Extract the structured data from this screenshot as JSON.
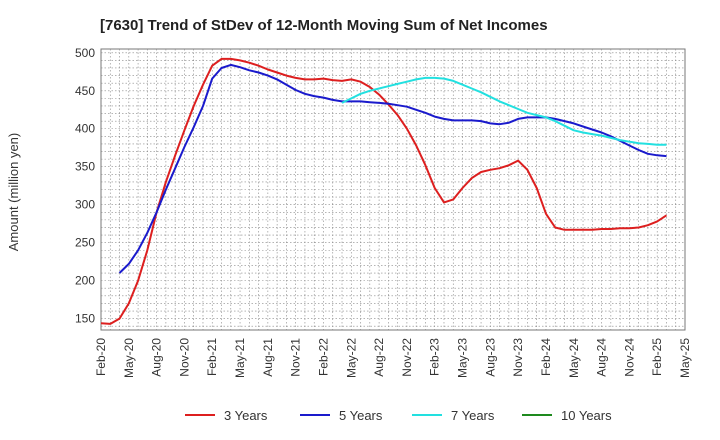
{
  "chart_data": {
    "type": "line",
    "title": "[7630]  Trend of StDev of 12-Month Moving Sum of Net Incomes",
    "xlabel": "",
    "ylabel": "Amount (million yen)",
    "ylim": [
      135,
      505
    ],
    "y_ticks": [
      150,
      200,
      250,
      300,
      350,
      400,
      450,
      500
    ],
    "x_ticks": [
      "Feb-20",
      "May-20",
      "Aug-20",
      "Nov-20",
      "Feb-21",
      "May-21",
      "Aug-21",
      "Nov-21",
      "Feb-22",
      "May-22",
      "Aug-22",
      "Nov-22",
      "Feb-23",
      "May-23",
      "Aug-23",
      "Nov-23",
      "Feb-24",
      "May-24",
      "Aug-24",
      "Nov-24",
      "Feb-25",
      "May-25"
    ],
    "x_unit": "month index from Feb-20",
    "grid": true,
    "legend_position": "bottom",
    "series": [
      {
        "name": "3 Years",
        "color": "#dd1f1f",
        "points": [
          [
            0,
            144
          ],
          [
            1,
            143
          ],
          [
            2,
            150
          ],
          [
            3,
            170
          ],
          [
            4,
            200
          ],
          [
            5,
            240
          ],
          [
            6,
            290
          ],
          [
            7,
            330
          ],
          [
            8,
            365
          ],
          [
            9,
            398
          ],
          [
            10,
            430
          ],
          [
            11,
            458
          ],
          [
            12,
            483
          ],
          [
            13,
            492
          ],
          [
            14,
            492
          ],
          [
            15,
            490
          ],
          [
            16,
            487
          ],
          [
            17,
            483
          ],
          [
            18,
            478
          ],
          [
            19,
            474
          ],
          [
            20,
            470
          ],
          [
            21,
            467
          ],
          [
            22,
            465
          ],
          [
            23,
            465
          ],
          [
            24,
            466
          ],
          [
            25,
            464
          ],
          [
            26,
            463
          ],
          [
            27,
            465
          ],
          [
            28,
            462
          ],
          [
            29,
            455
          ],
          [
            30,
            445
          ],
          [
            31,
            432
          ],
          [
            32,
            418
          ],
          [
            33,
            400
          ],
          [
            34,
            378
          ],
          [
            35,
            352
          ],
          [
            36,
            322
          ],
          [
            37,
            303
          ],
          [
            38,
            307
          ],
          [
            39,
            322
          ],
          [
            40,
            335
          ],
          [
            41,
            343
          ],
          [
            42,
            346
          ],
          [
            43,
            348
          ],
          [
            44,
            352
          ],
          [
            45,
            358
          ],
          [
            46,
            346
          ],
          [
            47,
            322
          ],
          [
            48,
            288
          ],
          [
            49,
            270
          ],
          [
            50,
            267
          ],
          [
            51,
            267
          ],
          [
            52,
            267
          ],
          [
            53,
            267
          ],
          [
            54,
            268
          ],
          [
            55,
            268
          ],
          [
            56,
            269
          ],
          [
            57,
            269
          ],
          [
            58,
            270
          ],
          [
            59,
            273
          ],
          [
            60,
            278
          ],
          [
            61,
            286
          ]
        ]
      },
      {
        "name": "5 Years",
        "color": "#1a1acc",
        "points": [
          [
            2,
            210
          ],
          [
            3,
            222
          ],
          [
            4,
            240
          ],
          [
            5,
            263
          ],
          [
            6,
            290
          ],
          [
            7,
            320
          ],
          [
            8,
            348
          ],
          [
            9,
            376
          ],
          [
            10,
            402
          ],
          [
            11,
            430
          ],
          [
            12,
            466
          ],
          [
            13,
            480
          ],
          [
            14,
            484
          ],
          [
            15,
            481
          ],
          [
            16,
            477
          ],
          [
            17,
            474
          ],
          [
            18,
            470
          ],
          [
            19,
            465
          ],
          [
            20,
            458
          ],
          [
            21,
            451
          ],
          [
            22,
            446
          ],
          [
            23,
            443
          ],
          [
            24,
            441
          ],
          [
            25,
            438
          ],
          [
            26,
            436
          ],
          [
            27,
            436
          ],
          [
            28,
            436
          ],
          [
            29,
            435
          ],
          [
            30,
            434
          ],
          [
            31,
            433
          ],
          [
            32,
            431
          ],
          [
            33,
            429
          ],
          [
            34,
            425
          ],
          [
            35,
            421
          ],
          [
            36,
            416
          ],
          [
            37,
            413
          ],
          [
            38,
            411
          ],
          [
            39,
            411
          ],
          [
            40,
            411
          ],
          [
            41,
            410
          ],
          [
            42,
            407
          ],
          [
            43,
            406
          ],
          [
            44,
            408
          ],
          [
            45,
            413
          ],
          [
            46,
            415
          ],
          [
            47,
            415
          ],
          [
            48,
            415
          ],
          [
            49,
            413
          ],
          [
            50,
            410
          ],
          [
            51,
            407
          ],
          [
            52,
            403
          ],
          [
            53,
            399
          ],
          [
            54,
            395
          ],
          [
            55,
            390
          ],
          [
            56,
            384
          ],
          [
            57,
            378
          ],
          [
            58,
            372
          ],
          [
            59,
            367
          ],
          [
            60,
            365
          ],
          [
            61,
            364
          ]
        ]
      },
      {
        "name": "7 Years",
        "color": "#22e0e0",
        "points": [
          [
            26,
            434
          ],
          [
            27,
            440
          ],
          [
            28,
            446
          ],
          [
            29,
            450
          ],
          [
            30,
            453
          ],
          [
            31,
            456
          ],
          [
            32,
            459
          ],
          [
            33,
            462
          ],
          [
            34,
            465
          ],
          [
            35,
            467
          ],
          [
            36,
            467
          ],
          [
            37,
            466
          ],
          [
            38,
            463
          ],
          [
            39,
            458
          ],
          [
            40,
            453
          ],
          [
            41,
            448
          ],
          [
            42,
            442
          ],
          [
            43,
            436
          ],
          [
            44,
            431
          ],
          [
            45,
            426
          ],
          [
            46,
            421
          ],
          [
            47,
            418
          ],
          [
            48,
            415
          ],
          [
            49,
            410
          ],
          [
            50,
            404
          ],
          [
            51,
            398
          ],
          [
            52,
            395
          ],
          [
            53,
            393
          ],
          [
            54,
            391
          ],
          [
            55,
            388
          ],
          [
            56,
            385
          ],
          [
            57,
            383
          ],
          [
            58,
            381
          ],
          [
            59,
            380
          ],
          [
            60,
            379
          ],
          [
            61,
            379
          ]
        ]
      },
      {
        "name": "10 Years",
        "color": "#1e8a1e",
        "points": []
      }
    ]
  }
}
